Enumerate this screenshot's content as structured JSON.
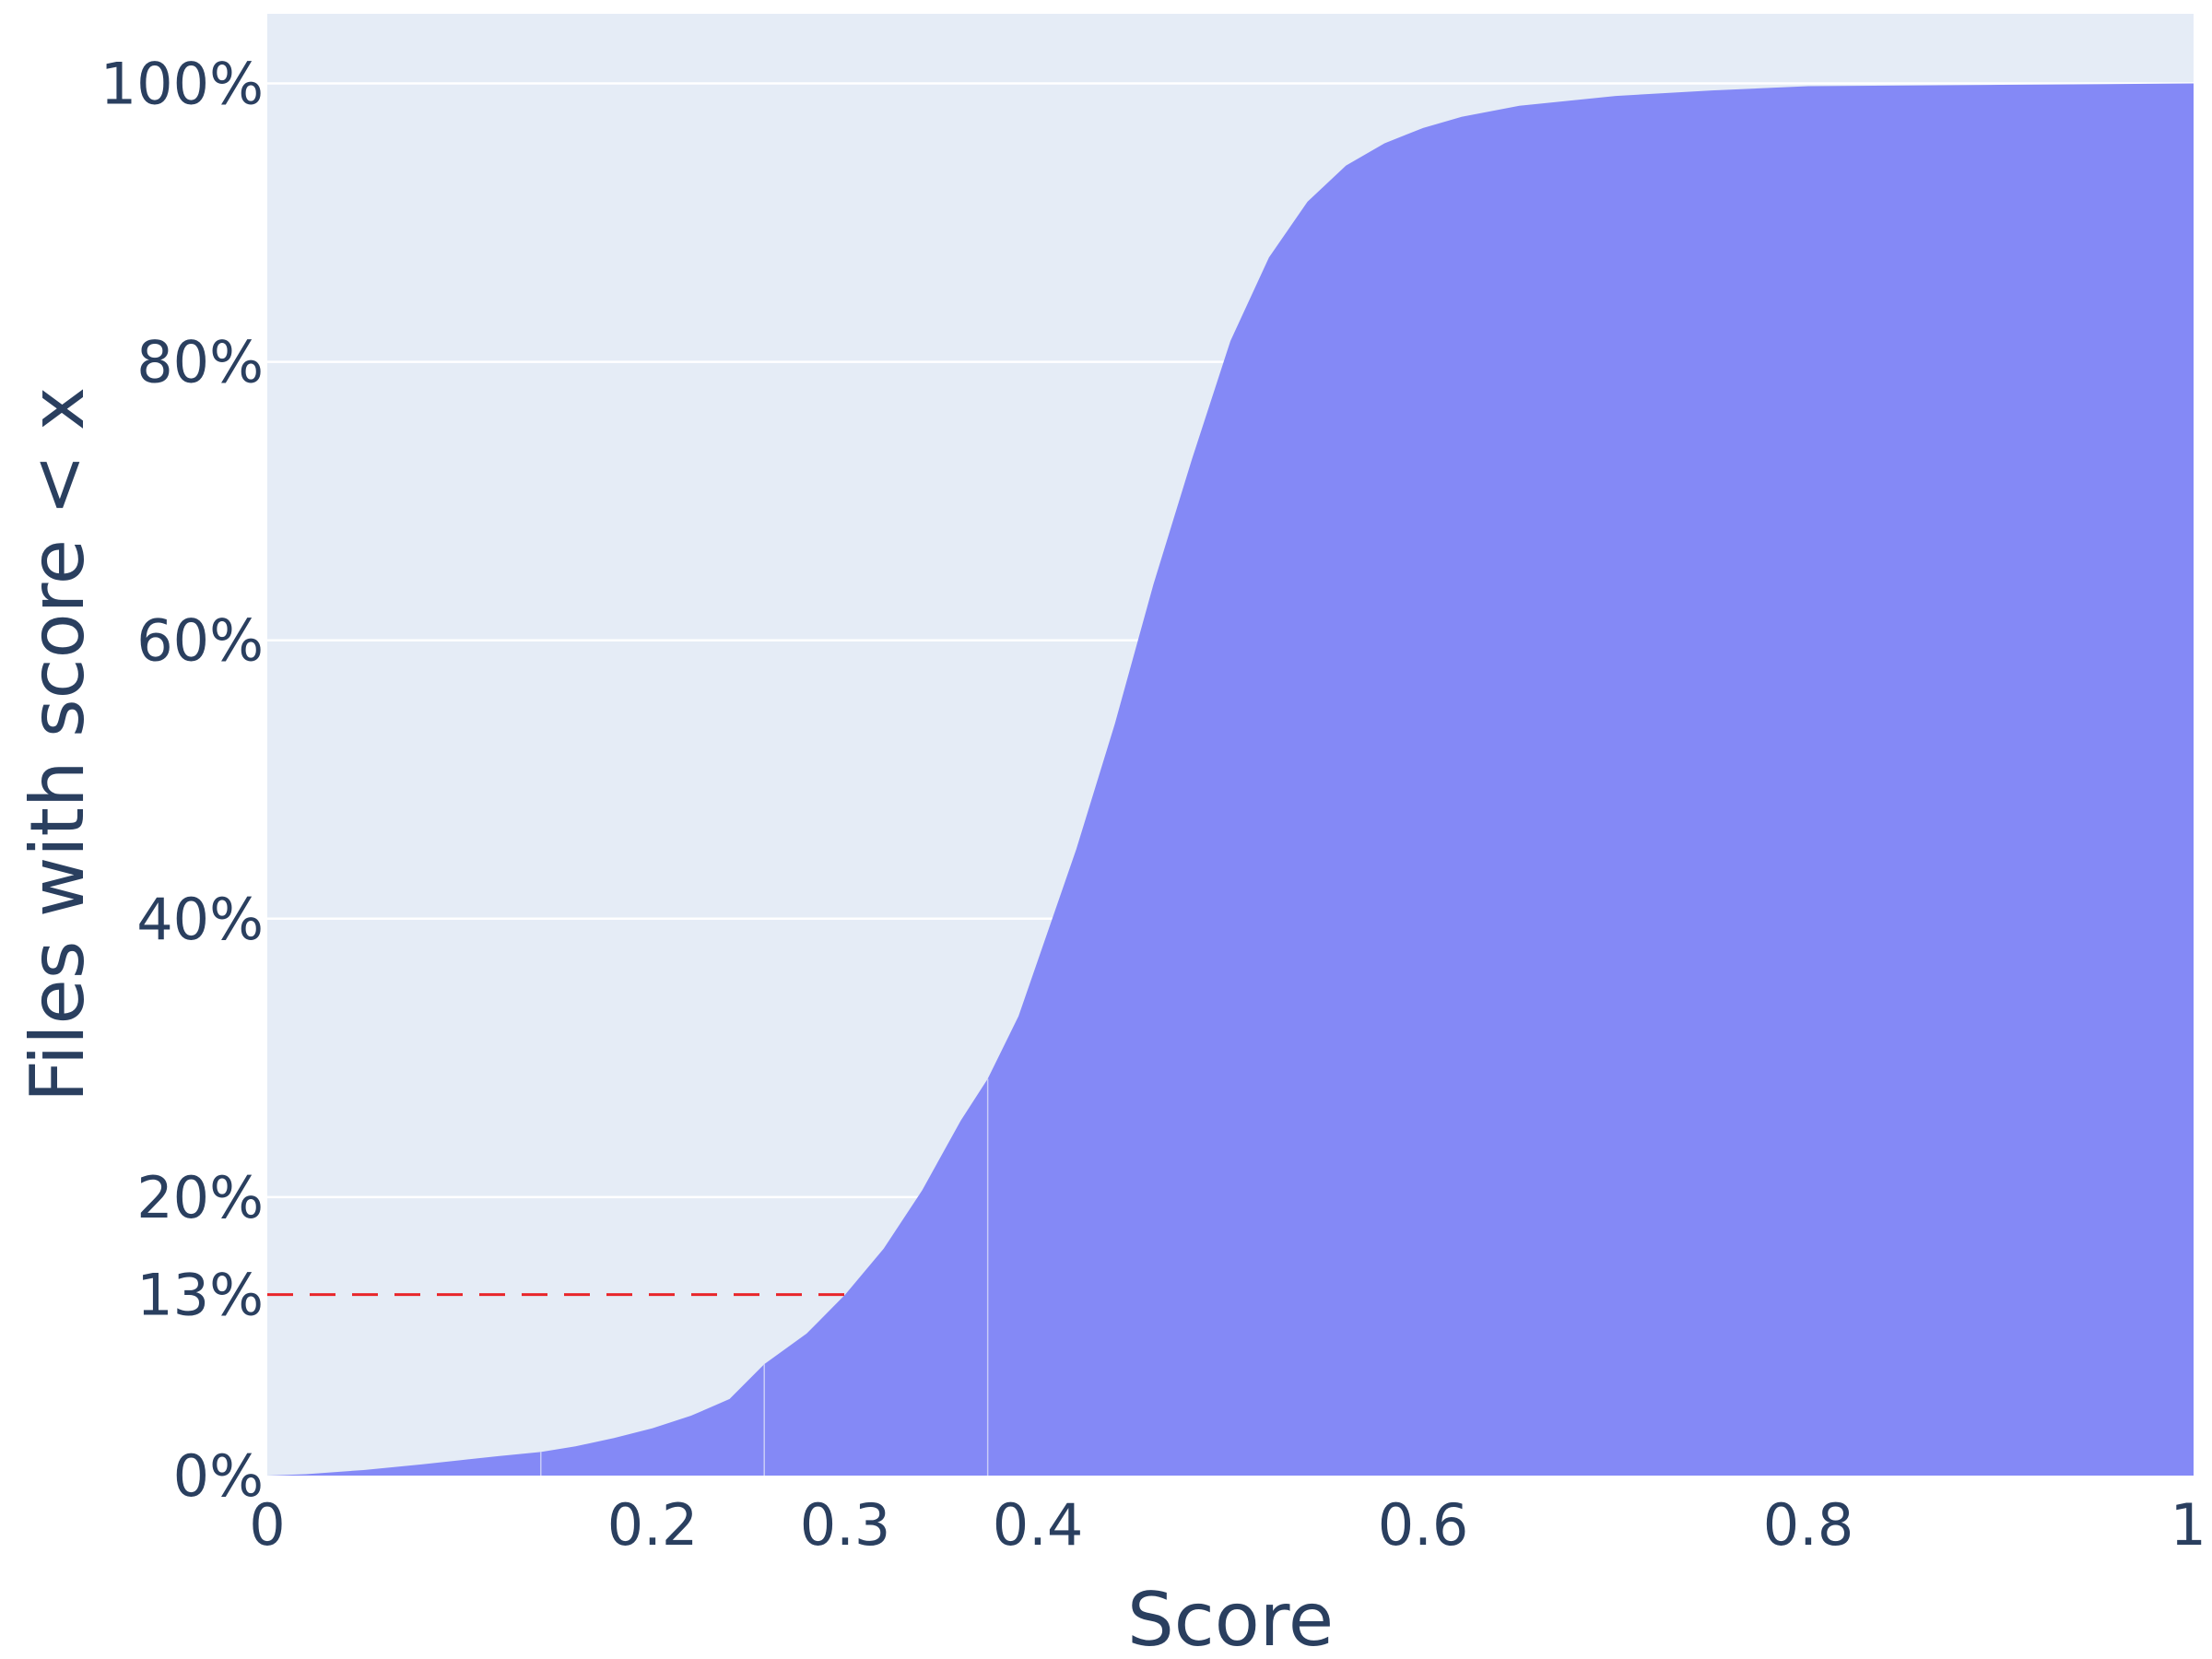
{
  "chart_data": {
    "type": "area",
    "title": "",
    "xlabel": "Score",
    "ylabel": "Files with score < x",
    "xlim": [
      0,
      1
    ],
    "ylim": [
      0,
      1.05
    ],
    "grid": true,
    "x_ticks": [
      {
        "value": 0,
        "label": "0"
      },
      {
        "value": 0.2,
        "label": "0.2"
      },
      {
        "value": 0.3,
        "label": "0.3"
      },
      {
        "value": 0.4,
        "label": "0.4"
      },
      {
        "value": 0.6,
        "label": "0.6"
      },
      {
        "value": 0.8,
        "label": "0.8"
      },
      {
        "value": 1,
        "label": "1"
      }
    ],
    "y_ticks": [
      {
        "value": 0,
        "label": "0%"
      },
      {
        "value": 0.13,
        "label": "13%"
      },
      {
        "value": 0.2,
        "label": "20%"
      },
      {
        "value": 0.4,
        "label": "40%"
      },
      {
        "value": 0.6,
        "label": "60%"
      },
      {
        "value": 0.8,
        "label": "80%"
      },
      {
        "value": 1.0,
        "label": "100%"
      }
    ],
    "series": [
      {
        "x": [
          0,
          0.02,
          0.05,
          0.08,
          0.1,
          0.12,
          0.142,
          0.16,
          0.18,
          0.2,
          0.22,
          0.24,
          0.258,
          0.28,
          0.3,
          0.32,
          0.34,
          0.36,
          0.374,
          0.39,
          0.4,
          0.42,
          0.44,
          0.46,
          0.48,
          0.5,
          0.52,
          0.54,
          0.56,
          0.58,
          0.6,
          0.62,
          0.65,
          0.7,
          0.75,
          0.8,
          0.9,
          1.0
        ],
        "values": [
          0,
          0.001,
          0.004,
          0.008,
          0.011,
          0.014,
          0.017,
          0.021,
          0.027,
          0.034,
          0.043,
          0.055,
          0.08,
          0.102,
          0.13,
          0.163,
          0.205,
          0.255,
          0.285,
          0.33,
          0.37,
          0.45,
          0.54,
          0.64,
          0.73,
          0.815,
          0.875,
          0.915,
          0.941,
          0.957,
          0.968,
          0.976,
          0.984,
          0.991,
          0.995,
          0.998,
          0.999,
          1.0
        ]
      }
    ],
    "vertical_markers": [
      0.142,
      0.258,
      0.374
    ],
    "reference_line": {
      "x_end": 0.3,
      "y": 0.13
    }
  },
  "colors": {
    "plot_bg": "#e5ecf6",
    "fill": "#8489f6",
    "gridline": "#ffffff",
    "reference": "#e8262a",
    "text": "#2a3f5f"
  }
}
